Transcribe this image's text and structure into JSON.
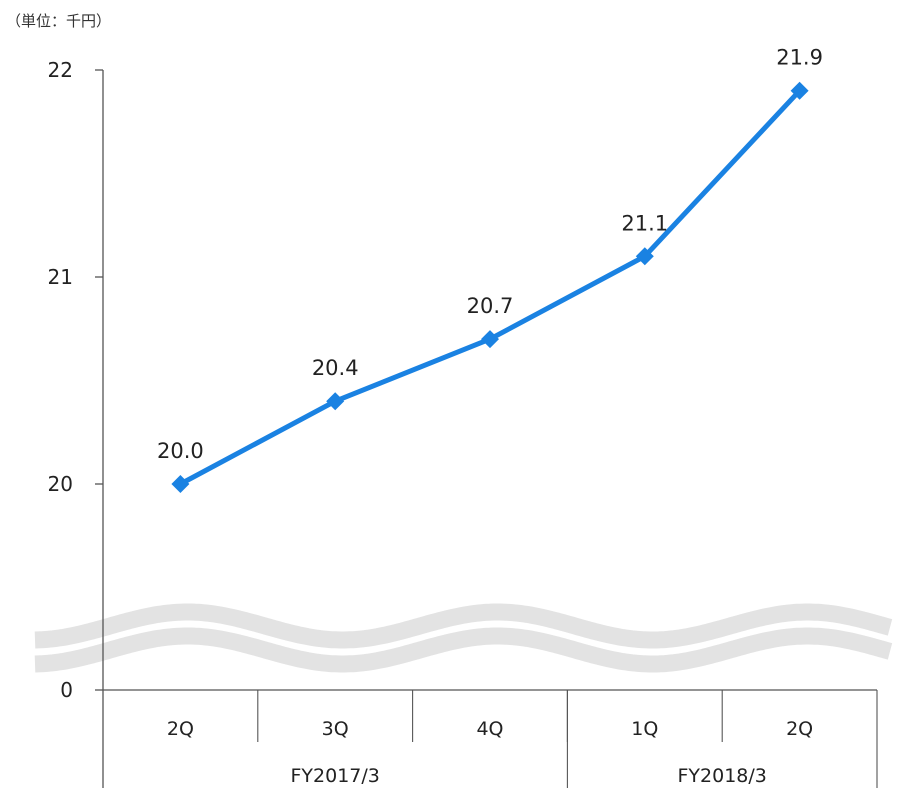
{
  "chart_data": {
    "type": "line",
    "unit_label": "（単位：千円）",
    "categories": [
      "2Q",
      "3Q",
      "4Q",
      "1Q",
      "2Q"
    ],
    "groups": [
      {
        "label": "FY2017/3",
        "span": 3
      },
      {
        "label": "FY2018/3",
        "span": 2
      }
    ],
    "series": [
      {
        "values": [
          20.0,
          20.4,
          20.7,
          21.1,
          21.9
        ]
      }
    ],
    "data_labels": [
      "20.0",
      "20.4",
      "20.7",
      "21.1",
      "21.9"
    ],
    "yticks": [
      {
        "value": 0,
        "label": "0"
      },
      {
        "value": 20,
        "label": "20"
      },
      {
        "value": 21,
        "label": "21"
      },
      {
        "value": 22,
        "label": "22"
      }
    ],
    "ylim_upper": [
      20,
      22
    ],
    "axis_break": true,
    "grid": false,
    "colors": {
      "line": "#1a82e2",
      "marker": "#1a82e2",
      "break": "#e3e3e3",
      "axis": "#555555"
    }
  }
}
